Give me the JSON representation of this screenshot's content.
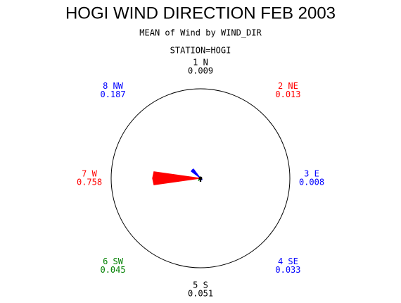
{
  "chart_data": {
    "type": "star",
    "title": "HOGI WIND DIRECTION FEB 2003",
    "subtitle": "MEAN of Wind by WIND_DIR",
    "group_label": "STATION=HOGI",
    "categories": [
      "1 N",
      "2 NE",
      "3 E",
      "4 SE",
      "5 S",
      "6 SW",
      "7 W",
      "8 NW"
    ],
    "values": [
      0.009,
      0.013,
      0.008,
      0.033,
      0.051,
      0.045,
      0.758,
      0.187
    ],
    "colors": [
      "#000000",
      "#ff0000",
      "#0000ff",
      "#0000ff",
      "#000000",
      "#008000",
      "#ff0000",
      "#0000ff"
    ],
    "rlim": [
      0,
      1.44
    ]
  }
}
